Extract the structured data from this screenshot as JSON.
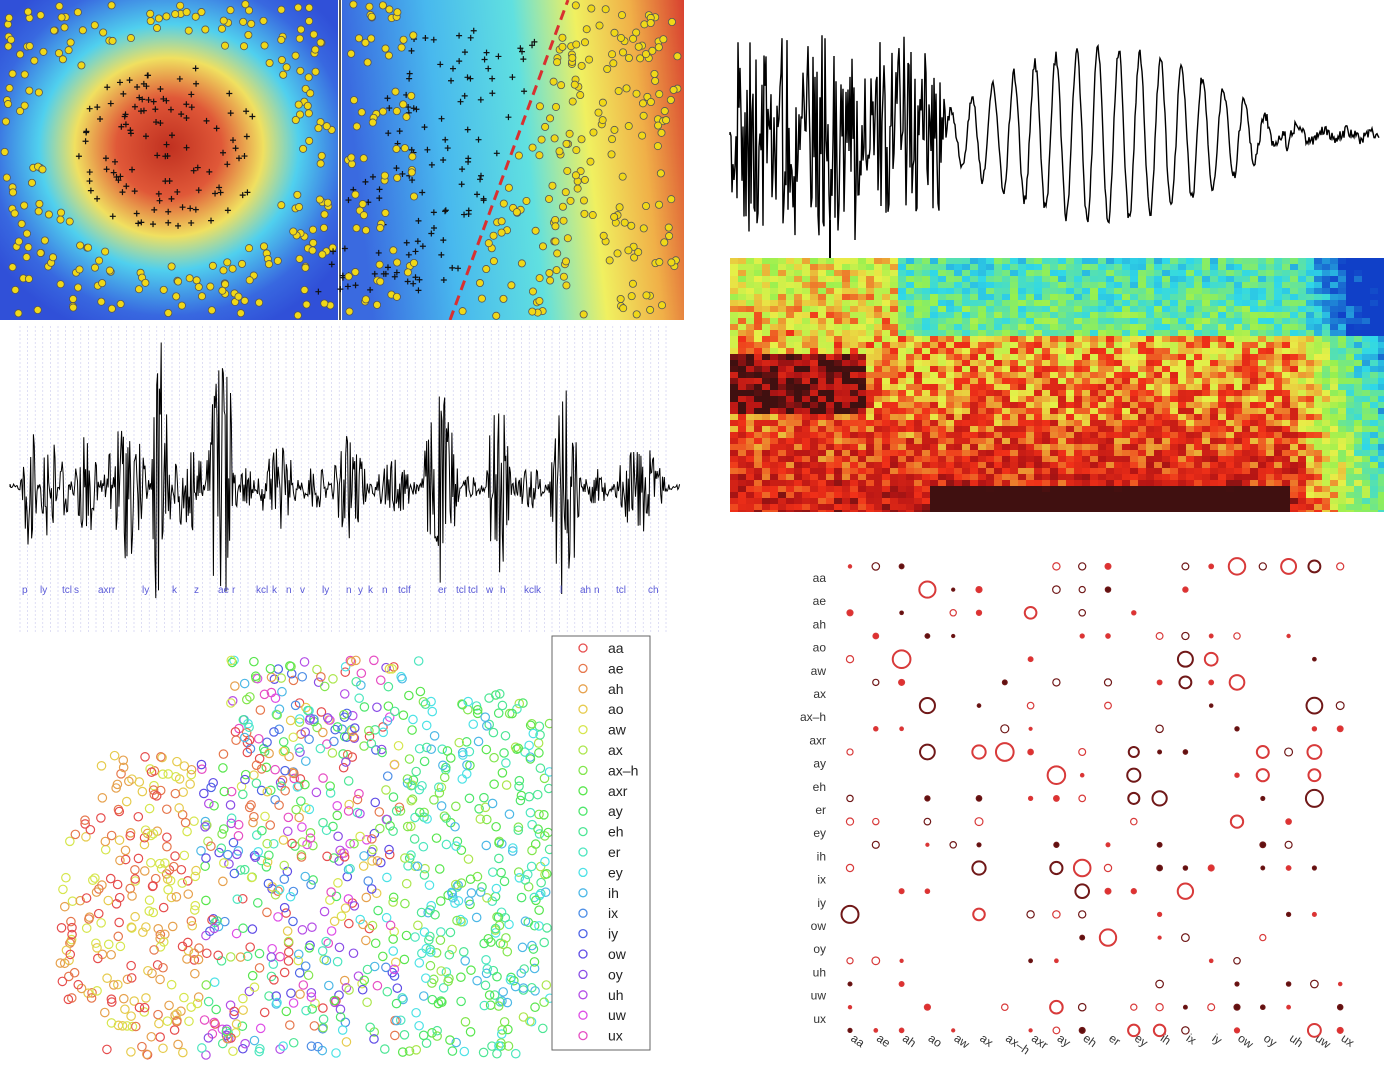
{
  "chart_data": [
    {
      "type": "heatmap",
      "title": "",
      "panels": [
        {
          "name": "radial-kernel",
          "boundary": "none"
        },
        {
          "name": "linear-kernel",
          "boundary": "dashed-diagonal",
          "boundary_color": "#d83030"
        }
      ],
      "classes": [
        "positive (+)",
        "negative (yellow dots)"
      ],
      "colormap": [
        "#3050d8",
        "#48c8ee",
        "#f0e860",
        "#d84030"
      ]
    },
    {
      "type": "line",
      "title": "",
      "description": "speech waveform",
      "phone_labels": [
        "p",
        "ly",
        "tcl",
        "s",
        "axrr",
        "ly",
        "k",
        "z",
        "ae",
        "r",
        "kcl",
        "k",
        "n",
        "v",
        "ly",
        "n",
        "y",
        "k",
        "n",
        "tcl",
        "f",
        "er",
        "tcl",
        "tcl",
        "w",
        "h",
        "kcl",
        "k",
        "l",
        "ah",
        "n",
        "tcl",
        "ch"
      ]
    },
    {
      "type": "line",
      "title": "",
      "description": "zoomed speech waveform segment"
    },
    {
      "type": "heatmap",
      "title": "",
      "description": "spectrogram",
      "colormap": [
        "#1040c8",
        "#30d8e8",
        "#e8f048",
        "#f03018",
        "#401010"
      ]
    },
    {
      "type": "scatter",
      "title": "",
      "description": "2-D embedding of phone frames",
      "legend_position": "right",
      "legend": [
        "aa",
        "ae",
        "ah",
        "ao",
        "aw",
        "ax",
        "ax–h",
        "axr",
        "ay",
        "eh",
        "er",
        "ey",
        "ih",
        "ix",
        "iy",
        "ow",
        "oy",
        "uh",
        "uw",
        "ux"
      ]
    },
    {
      "type": "scatter",
      "title": "",
      "description": "phone confusion matrix (bubble plot)",
      "y_categories": [
        "aa",
        "ae",
        "ah",
        "ao",
        "aw",
        "ax",
        "ax–h",
        "axr",
        "ay",
        "eh",
        "er",
        "ey",
        "ih",
        "ix",
        "iy",
        "ow",
        "oy",
        "uh",
        "uw",
        "ux"
      ],
      "x_categories": [
        "aa",
        "ae",
        "ah",
        "ao",
        "aw",
        "ax",
        "ax–h",
        "axr",
        "ay",
        "eh",
        "er",
        "ey",
        "ih",
        "ix",
        "iy",
        "ow",
        "oy",
        "uh",
        "uw",
        "ux"
      ],
      "marker": "open circle, size = count"
    }
  ]
}
